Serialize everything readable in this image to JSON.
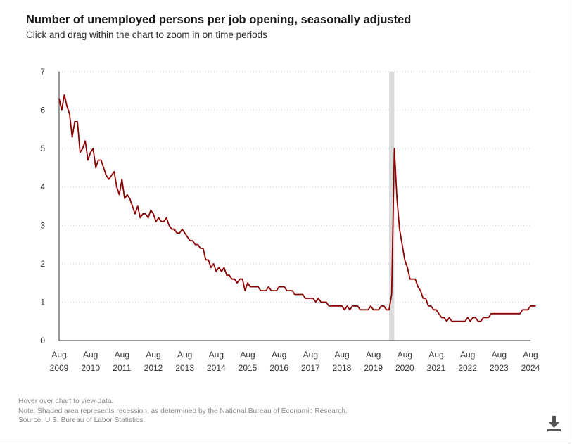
{
  "title": "Number of unemployed persons per job opening, seasonally adjusted",
  "subtitle": "Click and drag within the chart to zoom in on time periods",
  "notes": {
    "hover": "Hover over chart to view data.",
    "note": "Note: Shaded area represents recession, as determined by the National Bureau of Economic Research.",
    "source": "Source: U.S. Bureau of Labor Statistics."
  },
  "download_icon": "download-icon",
  "colors": {
    "line": "#8b0000",
    "recession": "#dcdcdc",
    "grid": "#c8c8c8",
    "axis": "#333333"
  },
  "chart_data": {
    "type": "line",
    "title": "Number of unemployed persons per job opening, seasonally adjusted",
    "xlabel": "",
    "ylabel": "",
    "ylim": [
      0,
      7
    ],
    "yticks": [
      "0",
      "1",
      "2",
      "3",
      "4",
      "5",
      "6",
      "7"
    ],
    "xticks": [
      {
        "month": "Aug",
        "year": "2009",
        "t": 2009.583
      },
      {
        "month": "Aug",
        "year": "2010",
        "t": 2010.583
      },
      {
        "month": "Aug",
        "year": "2011",
        "t": 2011.583
      },
      {
        "month": "Aug",
        "year": "2012",
        "t": 2012.583
      },
      {
        "month": "Aug",
        "year": "2013",
        "t": 2013.583
      },
      {
        "month": "Aug",
        "year": "2014",
        "t": 2014.583
      },
      {
        "month": "Aug",
        "year": "2015",
        "t": 2015.583
      },
      {
        "month": "Aug",
        "year": "2016",
        "t": 2016.583
      },
      {
        "month": "Aug",
        "year": "2017",
        "t": 2017.583
      },
      {
        "month": "Aug",
        "year": "2018",
        "t": 2018.583
      },
      {
        "month": "Aug",
        "year": "2019",
        "t": 2019.583
      },
      {
        "month": "Aug",
        "year": "2020",
        "t": 2020.583
      },
      {
        "month": "Aug",
        "year": "2021",
        "t": 2021.583
      },
      {
        "month": "Aug",
        "year": "2022",
        "t": 2022.583
      },
      {
        "month": "Aug",
        "year": "2023",
        "t": 2023.583
      },
      {
        "month": "Aug",
        "year": "2024",
        "t": 2024.583
      }
    ],
    "xlim": [
      2009.583,
      2024.583
    ],
    "recession": [
      2020.083,
      2020.25
    ],
    "start": "2009-08",
    "series": [
      {
        "name": "Unemployed persons per job opening",
        "values": [
          6.3,
          6.0,
          6.4,
          6.1,
          5.9,
          5.3,
          5.7,
          5.7,
          4.9,
          5.0,
          5.2,
          4.7,
          4.9,
          5.0,
          4.5,
          4.7,
          4.7,
          4.5,
          4.3,
          4.2,
          4.3,
          4.4,
          4.0,
          3.8,
          4.2,
          3.7,
          3.8,
          3.7,
          3.5,
          3.3,
          3.5,
          3.2,
          3.3,
          3.3,
          3.2,
          3.4,
          3.3,
          3.1,
          3.2,
          3.1,
          3.1,
          3.2,
          3.0,
          2.9,
          2.9,
          2.8,
          2.8,
          2.9,
          2.8,
          2.7,
          2.6,
          2.6,
          2.5,
          2.5,
          2.4,
          2.4,
          2.1,
          2.1,
          1.9,
          2.0,
          1.8,
          1.9,
          1.8,
          1.9,
          1.7,
          1.7,
          1.6,
          1.6,
          1.5,
          1.6,
          1.6,
          1.3,
          1.5,
          1.4,
          1.4,
          1.4,
          1.4,
          1.3,
          1.3,
          1.3,
          1.4,
          1.3,
          1.3,
          1.3,
          1.4,
          1.4,
          1.4,
          1.3,
          1.3,
          1.3,
          1.2,
          1.2,
          1.2,
          1.2,
          1.1,
          1.1,
          1.1,
          1.1,
          1.0,
          1.1,
          1.0,
          1.0,
          1.0,
          0.9,
          0.9,
          0.9,
          0.9,
          0.9,
          0.9,
          0.8,
          0.9,
          0.8,
          0.9,
          0.9,
          0.9,
          0.8,
          0.8,
          0.8,
          0.8,
          0.9,
          0.8,
          0.8,
          0.8,
          0.9,
          0.9,
          0.8,
          0.8,
          1.2,
          5.0,
          3.7,
          2.9,
          2.5,
          2.1,
          1.9,
          1.6,
          1.6,
          1.6,
          1.4,
          1.3,
          1.1,
          1.1,
          0.9,
          0.9,
          0.8,
          0.8,
          0.7,
          0.6,
          0.6,
          0.5,
          0.6,
          0.5,
          0.5,
          0.5,
          0.5,
          0.5,
          0.5,
          0.6,
          0.5,
          0.6,
          0.6,
          0.5,
          0.5,
          0.6,
          0.6,
          0.6,
          0.7,
          0.7,
          0.7,
          0.7,
          0.7,
          0.7,
          0.7,
          0.7,
          0.7,
          0.7,
          0.7,
          0.7,
          0.8,
          0.8,
          0.8,
          0.9,
          0.9,
          0.9
        ]
      }
    ]
  }
}
